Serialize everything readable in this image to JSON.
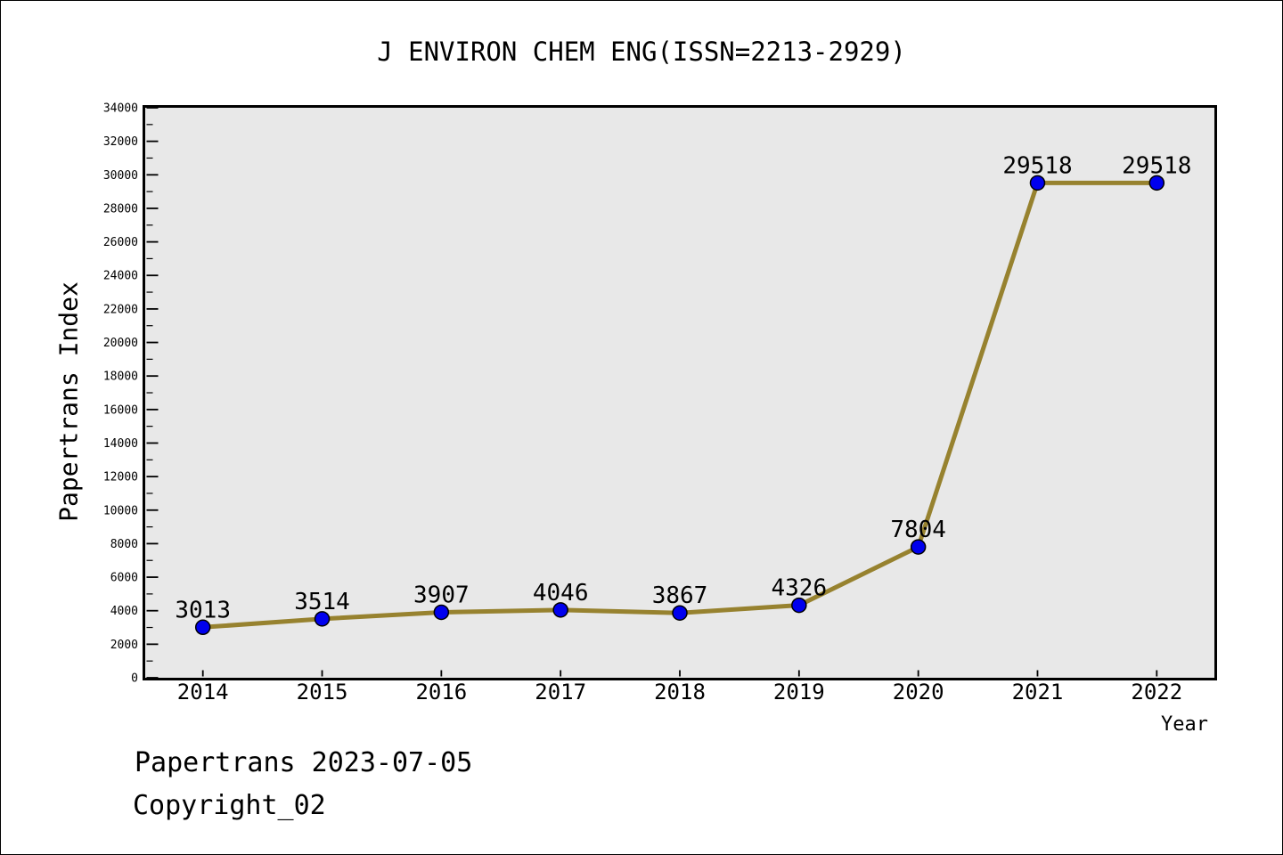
{
  "footer": {
    "line1": "Papertrans 2023-07-05",
    "line2": "Copyright_02"
  },
  "colors": {
    "line": "#97822F",
    "marker": "#0000EE",
    "marker_edge": "#000000",
    "plot_bg": "#E8E8E8",
    "frame": "#000000",
    "text": "#000000",
    "page_bg": "#FFFFFF"
  },
  "chart_data": {
    "type": "line",
    "title": "J ENVIRON CHEM ENG(ISSN=2213-2929)",
    "xlabel": "Year",
    "ylabel": "Papertrans Index",
    "x": [
      2014,
      2015,
      2016,
      2017,
      2018,
      2019,
      2020,
      2021,
      2022
    ],
    "values": [
      3013,
      3514,
      3907,
      4046,
      3867,
      4326,
      7804,
      29518,
      29518
    ],
    "data_labels": [
      "3013",
      "3514",
      "3907",
      "4046",
      "3867",
      "4326",
      "7804",
      "29518",
      "29518"
    ],
    "ylim": [
      0,
      34000
    ],
    "y_major_step": 2000,
    "y_minor_step": 1000,
    "grid": false,
    "legend": null,
    "marker": "circle",
    "tick_direction": "in"
  }
}
